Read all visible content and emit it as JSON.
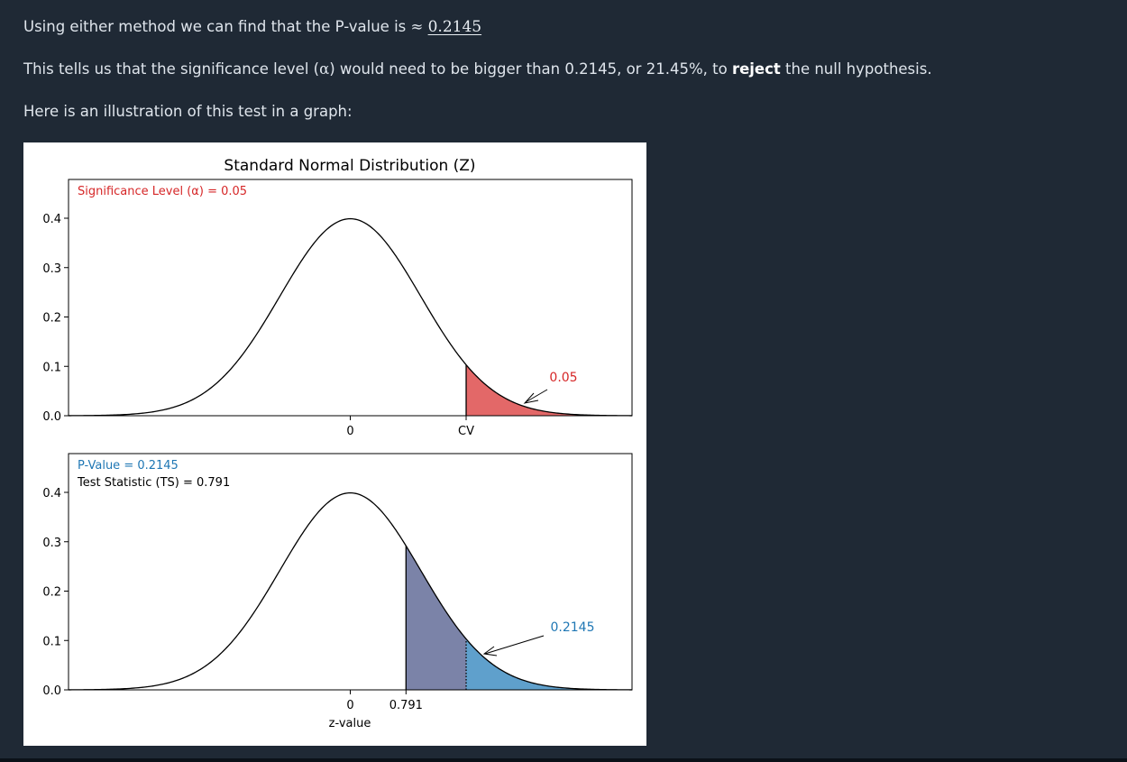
{
  "text": {
    "line1_prefix": "Using either method we can find that the P-value is",
    "approx_symbol": "≈",
    "p_value": "0.2145",
    "line2_part1": "This tells us that the significance level (",
    "alpha_symbol": "α",
    "line2_part2": ") would need to be bigger than 0.2145, or 21.45%, to",
    "line2_bold": "reject",
    "line2_part3": "the null hypothesis.",
    "line3": "Here is an illustration of this test in a graph:"
  },
  "chart_data": [
    {
      "type": "area",
      "title": "Standard Normal Distribution (Z)",
      "distribution": "standard normal",
      "xlabel": "",
      "ylabel": "",
      "xlim": [
        -4,
        4
      ],
      "ylim": [
        0,
        0.4
      ],
      "yticks": [
        0.0,
        0.1,
        0.2,
        0.3,
        0.4
      ],
      "ytick_labels": [
        "0.0",
        "0.1",
        "0.2",
        "0.3",
        "0.4"
      ],
      "xticks": [
        0,
        1.645
      ],
      "xtick_labels": [
        "0",
        "CV"
      ],
      "annotation": "Significance Level (α) = 0.05",
      "critical_value": 1.645,
      "shaded_area_label": "0.05",
      "colors": {
        "curve": "#000000",
        "alpha_fill": "#e36868",
        "alpha_text": "#d62728"
      }
    },
    {
      "type": "area",
      "distribution": "standard normal",
      "xlabel": "z-value",
      "ylabel": "",
      "xlim": [
        -4,
        4
      ],
      "ylim": [
        0,
        0.4
      ],
      "yticks": [
        0.0,
        0.1,
        0.2,
        0.3,
        0.4
      ],
      "ytick_labels": [
        "0.0",
        "0.1",
        "0.2",
        "0.3",
        "0.4"
      ],
      "xticks": [
        0,
        0.791
      ],
      "xtick_labels": [
        "0",
        "0.791"
      ],
      "annotations": [
        "P-Value = 0.2145",
        "Test Statistic (TS) = 0.791"
      ],
      "test_statistic": 0.791,
      "critical_value": 1.645,
      "p_value": 0.2145,
      "shaded_area_label": "0.2145",
      "colors": {
        "curve": "#000000",
        "pvalue_fill": "#5fa0cc",
        "overlap_fill": "#7b83a8",
        "pvalue_text": "#1f77b4"
      }
    }
  ]
}
